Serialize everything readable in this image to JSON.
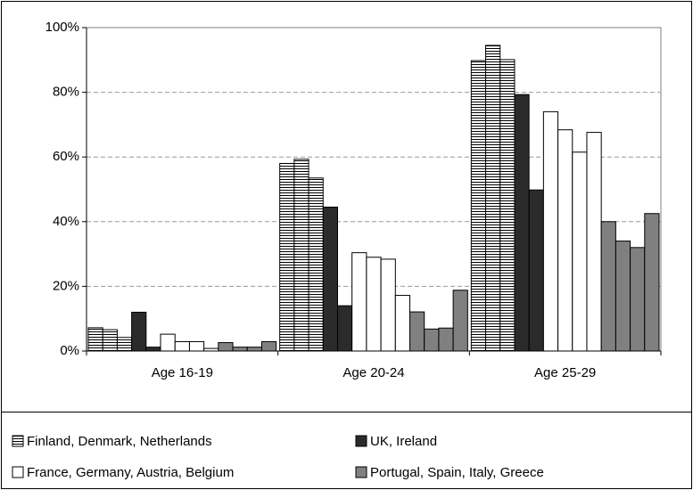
{
  "chart_data": {
    "type": "grouped-bar",
    "categories": [
      "Age 16-19",
      "Age 20-24",
      "Age 25-29"
    ],
    "series": [
      {
        "name": "Finland, Denmark, Netherlands",
        "color": "#ffffff",
        "hatch": true,
        "values": [
          [
            7.2,
            6.6,
            4.2
          ],
          [
            58,
            59.3,
            53.5
          ],
          [
            89.8,
            94.5,
            90.1
          ]
        ]
      },
      {
        "name": "UK, Ireland",
        "color": "#2b2b2b",
        "values": [
          [
            12,
            1.2
          ],
          [
            44.5,
            14
          ],
          [
            79.3,
            49.8
          ]
        ]
      },
      {
        "name": "France, Germany, Austria, Belgium",
        "color": "#ffffff",
        "values": [
          [
            5.2,
            2.9,
            2.9,
            0.8
          ],
          [
            30.4,
            29,
            28.4,
            17.2
          ],
          [
            74,
            68.4,
            61.5,
            67.6
          ]
        ]
      },
      {
        "name": "Portugal, Spain, Italy, Greece",
        "color": "#808080",
        "values": [
          [
            2.6,
            1.2,
            1.2,
            2.9
          ],
          [
            12.1,
            6.8,
            7.1,
            18.8
          ],
          [
            40,
            34,
            32,
            42.5
          ]
        ]
      }
    ],
    "ylim": [
      0,
      100
    ],
    "yticks": [
      {
        "value": 0,
        "label": "0%"
      },
      {
        "value": 20,
        "label": "20%"
      },
      {
        "value": 40,
        "label": "40%"
      },
      {
        "value": 60,
        "label": "60%"
      },
      {
        "value": 80,
        "label": "80%"
      },
      {
        "value": 100,
        "label": "100%"
      }
    ],
    "grid": true,
    "legend": "bottom"
  }
}
